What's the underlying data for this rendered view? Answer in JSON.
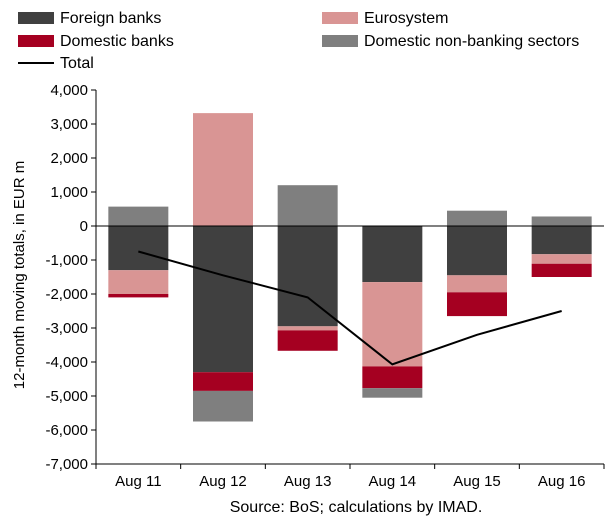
{
  "chart_data": {
    "type": "bar",
    "stacked": true,
    "categories": [
      "Aug 11",
      "Aug 12",
      "Aug 13",
      "Aug 14",
      "Aug 15",
      "Aug 16"
    ],
    "series": [
      {
        "name": "Foreign banks",
        "color": "#404040",
        "values": [
          -1300,
          -4300,
          -2950,
          -1650,
          -1450,
          -830
        ]
      },
      {
        "name": "Eurosystem",
        "color": "#d99594",
        "values": [
          -700,
          3320,
          -120,
          -2480,
          -500,
          -280
        ]
      },
      {
        "name": "Domestic banks",
        "color": "#a50021",
        "values": [
          -100,
          -550,
          -600,
          -640,
          -700,
          -390
        ]
      },
      {
        "name": "Domestic non-banking sectors",
        "color": "#7f7f7f",
        "values": [
          570,
          -900,
          1200,
          -280,
          450,
          280
        ]
      }
    ],
    "line": {
      "name": "Total",
      "color": "#000000",
      "values": [
        -750,
        -1450,
        -2100,
        -4070,
        -3200,
        -2500
      ]
    },
    "ylabel": "12-month moving totals, in EUR m",
    "ylim": [
      -7000,
      4000
    ],
    "yticks": [
      4000,
      3000,
      2000,
      1000,
      0,
      -1000,
      -2000,
      -3000,
      -4000,
      -5000,
      -6000,
      -7000
    ],
    "ytick_labels": [
      "4,000",
      "3,000",
      "2,000",
      "1,000",
      "0",
      "-1,000",
      "-2,000",
      "-3,000",
      "-4,000",
      "-5,000",
      "-6,000",
      "-7,000"
    ],
    "legend_position": "top",
    "legend_order": [
      "Foreign banks",
      "Eurosystem",
      "Domestic banks",
      "Domestic non-banking sectors",
      "Total"
    ],
    "grid": false
  },
  "source_note": "Source: BoS; calculations by IMAD."
}
